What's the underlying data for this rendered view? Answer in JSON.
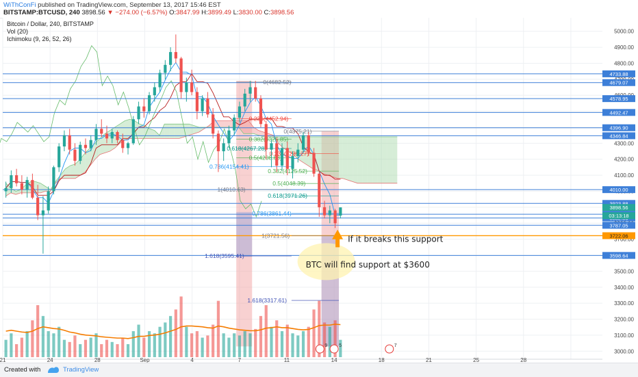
{
  "header": {
    "author": "WiThConFi",
    "published_text": "published on TradingView.com, September 13, 2017 15:46 EST",
    "symbol": "BITSTAMP:BTCUSD, 240",
    "last": "3898.56",
    "change": "−274.00 (−6.57%)",
    "ohlc": {
      "o_label": "O:",
      "o": "3847.99",
      "h_label": "H:",
      "h": "3899.49",
      "l_label": "L:",
      "l": "3830.00",
      "c_label": "C:",
      "c": "3898.56"
    }
  },
  "legend": {
    "title": "Bitcoin / Dollar, 240, BITSTAMP",
    "vol": "Vol (20)",
    "ichimoku": "Ichimoku (9, 26, 52, 26)"
  },
  "footer": {
    "created_with": "Created with",
    "brand": "TradingView"
  },
  "colors": {
    "up": "#26a69a",
    "down": "#ef5350",
    "hline": "#3d7fd8",
    "support": "#ff9800",
    "cloud_green": "#a5d6a7",
    "cloud_red": "#ef9a9a",
    "tenkan": "#2196f3",
    "kijun": "#b71c1c",
    "chikou": "#66bb6a",
    "fib_red_zone": "#ef9a9a",
    "fib_blue_zone": "#9fa8da",
    "volume_ma": "#f57c00"
  },
  "chart_data": {
    "type": "candlestick",
    "y_axis": {
      "min": 2950,
      "max": 5050,
      "ticks": [
        3000,
        3100,
        3200,
        3300,
        3400,
        3500,
        3600,
        3700,
        3800,
        3900,
        4000,
        4100,
        4200,
        4300,
        4400,
        4500,
        4600,
        4700,
        4800,
        4900,
        5000
      ],
      "tick_labels": [
        "3000.00",
        "3100.00",
        "3200.00",
        "3300.00",
        "3400.00",
        "3500.00",
        "3600.00",
        "3700.00",
        "3800.00",
        "3900.00",
        "4000.00",
        "4100.00",
        "4200.00",
        "4300.00",
        "4400.00",
        "4500.00",
        "4600.00",
        "4700.00",
        "4800.00",
        "4900.00",
        "5000.00"
      ]
    },
    "x_axis": {
      "min": 0,
      "max": 38,
      "ticks": [
        0,
        3,
        6,
        9,
        12,
        15,
        18,
        21,
        24,
        27,
        30,
        33,
        36
      ],
      "tick_labels": [
        "21",
        "24",
        "28",
        "Sep",
        "4",
        "7",
        "11",
        "14",
        "18",
        "21",
        "25",
        "28",
        ""
      ]
    },
    "horizontal_levels": [
      {
        "price": 4733.88,
        "label": "4733.88"
      },
      {
        "price": 4679.07,
        "label": "4679.07"
      },
      {
        "price": 4578.95,
        "label": "4578.95"
      },
      {
        "price": 4492.47,
        "label": "4492.47"
      },
      {
        "price": 4396.9,
        "label": "4396.90"
      },
      {
        "price": 4346.84,
        "label": "4346.84"
      },
      {
        "price": 4010.0,
        "label": "4010.00"
      },
      {
        "price": 3923.88,
        "label": "3923.88"
      },
      {
        "price": 3856.28,
        "label": "3856.28"
      },
      {
        "price": 3832.86,
        "label": "3832.86"
      },
      {
        "price": 3787.05,
        "label": "3787.05"
      },
      {
        "price": 3598.64,
        "label": "3598.64"
      }
    ],
    "support_level": {
      "price": 3722.06,
      "label": "3722.06"
    },
    "last_price": {
      "price": 3898.56,
      "label": "3898.56",
      "countdown": "03:13:18"
    },
    "fib_set_1": {
      "x_from": 14.8,
      "x_to": 18.3,
      "zone_top": 4690,
      "zone_bottom": 3030,
      "labels": [
        {
          "text": "0(4682.52)",
          "price": 4682.52,
          "x": 16.5
        },
        {
          "text": "0.236(4452.94)",
          "price": 4452.94,
          "x": 15.6
        },
        {
          "text": "0.382(4325.85)",
          "price": 4325.85,
          "x": 15.6
        },
        {
          "text": "0.5(4208.68)",
          "price": 4208.68,
          "x": 15.6
        },
        {
          "text": "0.618(4267.28)",
          "price": 4267.28,
          "x": 14.2
        },
        {
          "text": "0.786(4154.41)",
          "price": 4154.41,
          "x": 13.1
        },
        {
          "text": "1(4010.63)",
          "price": 4010.63,
          "x": 13.6
        },
        {
          "text": "1.618(3595.41)",
          "price": 3595.41,
          "x": 12.8
        }
      ]
    },
    "fib_set_2": {
      "x_from": 18.3,
      "x_to": 21.3,
      "labels": [
        {
          "text": "0(4375.21)",
          "price": 4375.21,
          "x": 17.8
        },
        {
          "text": "0.236(4235.27)",
          "price": 4235.27,
          "x": 16.9
        },
        {
          "text": "0.382(4125.52)",
          "price": 4125.52,
          "x": 16.8
        },
        {
          "text": "0.5(4048.39)",
          "price": 4048.39,
          "x": 17.1
        },
        {
          "text": "0.618(3971.26)",
          "price": 3971.26,
          "x": 16.8
        },
        {
          "text": "0.786(3861.44)",
          "price": 3861.44,
          "x": 15.8
        },
        {
          "text": "1(3721.56)",
          "price": 3721.56,
          "x": 16.4
        },
        {
          "text": "1.618(3317.61)",
          "price": 3317.61,
          "x": 15.5
        }
      ]
    },
    "annotations": [
      {
        "text": "If it breaks this support",
        "price": 3700,
        "x": 21.0
      },
      {
        "text": "BTC will find support at $3600",
        "price": 3540,
        "x": 19.2
      }
    ],
    "candles": [
      [
        4000,
        4060,
        3960,
        4020
      ],
      [
        4020,
        4130,
        3990,
        4100
      ],
      [
        4100,
        4140,
        4030,
        4050
      ],
      [
        4050,
        4100,
        3980,
        4010
      ],
      [
        4010,
        4090,
        3960,
        4070
      ],
      [
        4070,
        4110,
        3950,
        3960
      ],
      [
        3960,
        4040,
        3820,
        3850
      ],
      [
        3850,
        3970,
        3610,
        3880
      ],
      [
        3880,
        4030,
        3860,
        4000
      ],
      [
        4000,
        4160,
        3980,
        4150
      ],
      [
        4150,
        4300,
        4120,
        4280
      ],
      [
        4280,
        4380,
        4250,
        4350
      ],
      [
        4350,
        4390,
        4230,
        4260
      ],
      [
        4260,
        4300,
        4160,
        4190
      ],
      [
        4190,
        4310,
        4170,
        4290
      ],
      [
        4290,
        4330,
        4230,
        4270
      ],
      [
        4270,
        4350,
        4250,
        4320
      ],
      [
        4320,
        4420,
        4290,
        4390
      ],
      [
        4390,
        4450,
        4340,
        4360
      ],
      [
        4360,
        4410,
        4300,
        4330
      ],
      [
        4330,
        4390,
        4300,
        4370
      ],
      [
        4370,
        4380,
        4300,
        4320
      ],
      [
        4320,
        4360,
        4240,
        4270
      ],
      [
        4270,
        4310,
        4230,
        4300
      ],
      [
        4300,
        4470,
        4290,
        4450
      ],
      [
        4450,
        4560,
        4420,
        4530
      ],
      [
        4530,
        4580,
        4460,
        4500
      ],
      [
        4500,
        4620,
        4480,
        4600
      ],
      [
        4600,
        4680,
        4560,
        4650
      ],
      [
        4650,
        4760,
        4620,
        4740
      ],
      [
        4740,
        4820,
        4700,
        4790
      ],
      [
        4790,
        4900,
        4750,
        4870
      ],
      [
        4870,
        4980,
        4800,
        4830
      ],
      [
        4830,
        4840,
        4580,
        4620
      ],
      [
        4620,
        4710,
        4560,
        4680
      ],
      [
        4680,
        4760,
        4600,
        4620
      ],
      [
        4620,
        4650,
        4450,
        4500
      ],
      [
        4500,
        4600,
        4470,
        4580
      ],
      [
        4580,
        4620,
        4460,
        4480
      ],
      [
        4480,
        4520,
        4330,
        4360
      ],
      [
        4360,
        4380,
        4120,
        4250
      ],
      [
        4250,
        4330,
        4190,
        4300
      ],
      [
        4300,
        4410,
        4270,
        4380
      ],
      [
        4380,
        4480,
        4350,
        4460
      ],
      [
        4460,
        4560,
        4430,
        4530
      ],
      [
        4530,
        4640,
        4500,
        4610
      ],
      [
        4610,
        4690,
        4560,
        4650
      ],
      [
        4650,
        4690,
        4560,
        4580
      ],
      [
        4580,
        4600,
        4400,
        4420
      ],
      [
        4420,
        4440,
        4200,
        4260
      ],
      [
        4260,
        4320,
        4150,
        4300
      ],
      [
        4300,
        4330,
        4120,
        4160
      ],
      [
        4160,
        4300,
        4130,
        4270
      ],
      [
        4270,
        4310,
        4100,
        4140
      ],
      [
        4140,
        4250,
        4080,
        4220
      ],
      [
        4220,
        4300,
        4180,
        4260
      ],
      [
        4260,
        4370,
        4240,
        4350
      ],
      [
        4350,
        4370,
        4220,
        4240
      ],
      [
        4240,
        4270,
        4090,
        4110
      ],
      [
        4110,
        4130,
        3840,
        3900
      ],
      [
        3900,
        3940,
        3830,
        3850
      ],
      [
        3850,
        3910,
        3800,
        3880
      ],
      [
        3880,
        3890,
        3770,
        3800
      ],
      [
        3848,
        3899,
        3830,
        3899
      ]
    ],
    "cloud": [
      [
        4050,
        3970
      ],
      [
        4020,
        3990
      ],
      [
        4000,
        3980
      ],
      [
        4010,
        3990
      ],
      [
        4040,
        3990
      ],
      [
        4060,
        3990
      ],
      [
        4060,
        3990
      ],
      [
        4050,
        3990
      ],
      [
        4030,
        4000
      ],
      [
        4010,
        4000
      ],
      [
        4060,
        4050
      ],
      [
        4100,
        4080
      ],
      [
        4140,
        4080
      ],
      [
        4160,
        4080
      ],
      [
        4170,
        4080
      ],
      [
        4200,
        4100
      ],
      [
        4240,
        4120
      ],
      [
        4270,
        4160
      ],
      [
        4300,
        4200
      ],
      [
        4330,
        4230
      ],
      [
        4360,
        4240
      ],
      [
        4380,
        4250
      ],
      [
        4400,
        4270
      ],
      [
        4420,
        4300
      ],
      [
        4440,
        4320
      ],
      [
        4450,
        4330
      ],
      [
        4440,
        4330
      ],
      [
        4420,
        4330
      ],
      [
        4410,
        4330
      ],
      [
        4390,
        4330
      ],
      [
        4380,
        4330
      ],
      [
        4350,
        4330
      ],
      [
        4420,
        4330
      ],
      [
        4420,
        4330
      ],
      [
        4420,
        4330
      ],
      [
        4420,
        4330
      ],
      [
        4420,
        4340
      ],
      [
        4420,
        4350
      ],
      [
        4410,
        4360
      ],
      [
        4400,
        4370
      ],
      [
        4400,
        4390
      ],
      [
        4400,
        4410
      ],
      [
        4400,
        4440
      ],
      [
        4400,
        4440
      ],
      [
        4400,
        4440
      ],
      [
        4400,
        4440
      ],
      [
        4400,
        4440
      ],
      [
        4400,
        4440
      ],
      [
        4360,
        4440
      ],
      [
        4360,
        4440
      ],
      [
        4360,
        4400
      ],
      [
        4350,
        4380
      ],
      [
        4340,
        4370
      ],
      [
        4340,
        4360
      ],
      [
        4340,
        4350
      ],
      [
        4340,
        4300
      ],
      [
        4340,
        4270
      ],
      [
        4340,
        4250
      ],
      [
        4340,
        4230
      ],
      [
        4340,
        4200
      ],
      [
        4340,
        4180
      ],
      [
        4340,
        4160
      ],
      [
        4340,
        4140
      ],
      [
        4340,
        4130
      ],
      [
        4340,
        4110
      ],
      [
        4340,
        4100
      ],
      [
        4340,
        4090
      ],
      [
        4340,
        4080
      ],
      [
        4340,
        4080
      ],
      [
        4340,
        4070
      ],
      [
        4340,
        4060
      ],
      [
        4340,
        4050
      ],
      [
        4340,
        4050
      ],
      [
        4340,
        4050
      ],
      [
        4340,
        4050
      ],
      [
        4340,
        4050
      ],
      [
        4340,
        4050
      ],
      [
        4340,
        4050
      ],
      [
        4340,
        4050
      ],
      [
        4340,
        4050
      ]
    ],
    "volume": [
      40,
      55,
      30,
      45,
      60,
      85,
      120,
      95,
      60,
      55,
      70,
      40,
      35,
      50,
      30,
      40,
      45,
      55,
      30,
      40,
      35,
      30,
      45,
      30,
      60,
      75,
      45,
      60,
      55,
      70,
      80,
      95,
      110,
      140,
      70,
      55,
      60,
      45,
      50,
      75,
      130,
      55,
      45,
      55,
      50,
      60,
      55,
      65,
      95,
      120,
      70,
      85,
      60,
      75,
      55,
      50,
      60,
      70,
      110,
      130,
      80,
      70,
      85,
      40
    ],
    "volume_ma": [
      60,
      62,
      60,
      58,
      57,
      60,
      66,
      70,
      68,
      66,
      65,
      62,
      58,
      56,
      53,
      51,
      50,
      49,
      47,
      46,
      45,
      44,
      44,
      43,
      45,
      48,
      48,
      50,
      51,
      53,
      56,
      60,
      64,
      70,
      72,
      72,
      71,
      70,
      68,
      67,
      72,
      70,
      67,
      65,
      63,
      62,
      61,
      61,
      63,
      67,
      68,
      70,
      68,
      68,
      66,
      64,
      63,
      64,
      68,
      73,
      74,
      74,
      76,
      75
    ],
    "event_markers": [
      {
        "x": 20.1,
        "label": "9"
      },
      {
        "x": 21.0,
        "label": "5"
      },
      {
        "x": 24.5,
        "label": "7"
      }
    ]
  }
}
